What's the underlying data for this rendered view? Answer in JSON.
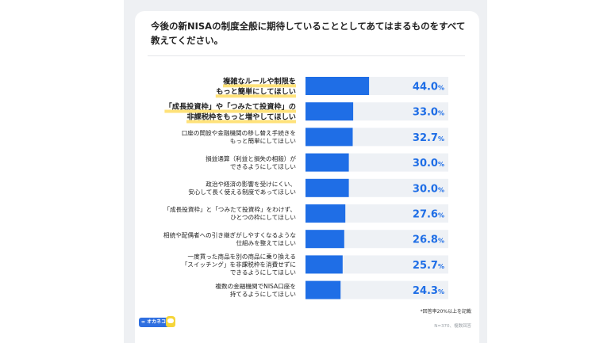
{
  "title": "今後の新NISAの制度全般に期待していることとしてあてはまるものをすべて教えてください。",
  "footnote": "*回答率20%以上を記載",
  "sample_note": "N=370、複数回答",
  "logo_text": "∞ オカネコ",
  "colors": {
    "bar": "#1f6ee6",
    "track": "#eef1f5",
    "value_text": "#1f6ee6",
    "highlight": "#ffe27a"
  },
  "chart_data": {
    "type": "bar",
    "orientation": "horizontal",
    "title": "今後の新NISAの制度全般に期待していることとしてあてはまるものをすべて教えてください。",
    "xlabel": "",
    "ylabel": "",
    "xlim": [
      0,
      100
    ],
    "unit": "%",
    "grid": false,
    "categories": [
      [
        "複雑なルールや制限を",
        "もっと簡単にしてほしい"
      ],
      [
        "「成長投資枠」や「つみたて投資枠」の",
        "非課税枠をもっと増やしてほしい"
      ],
      [
        "口座の開設や金融機関の移し替え手続きを",
        "もっと簡単にしてほしい"
      ],
      [
        "損益通算（利益と損失の相殺）が",
        "できるようにしてほしい"
      ],
      [
        "政治や経済の影響を受けにくい、",
        "安心して長く使える制度であってほしい"
      ],
      [
        "「成長投資枠」と「つみたて投資枠」をわけず、",
        "ひとつの枠にしてほしい"
      ],
      [
        "相続や配偶者への引き継ぎがしやすくなるような",
        "仕組みを整えてほしい"
      ],
      [
        "一度買った商品を別の商品に乗り換える",
        "「スイッチング」を非課税枠を消費せずに",
        "できるようにしてほしい"
      ],
      [
        "複数の金融機関でNISA口座を",
        "持てるようにしてほしい"
      ]
    ],
    "values": [
      44.0,
      33.0,
      32.7,
      30.0,
      30.0,
      27.6,
      26.8,
      25.7,
      24.3
    ],
    "highlighted": [
      true,
      true,
      false,
      false,
      false,
      false,
      false,
      false,
      false
    ]
  }
}
